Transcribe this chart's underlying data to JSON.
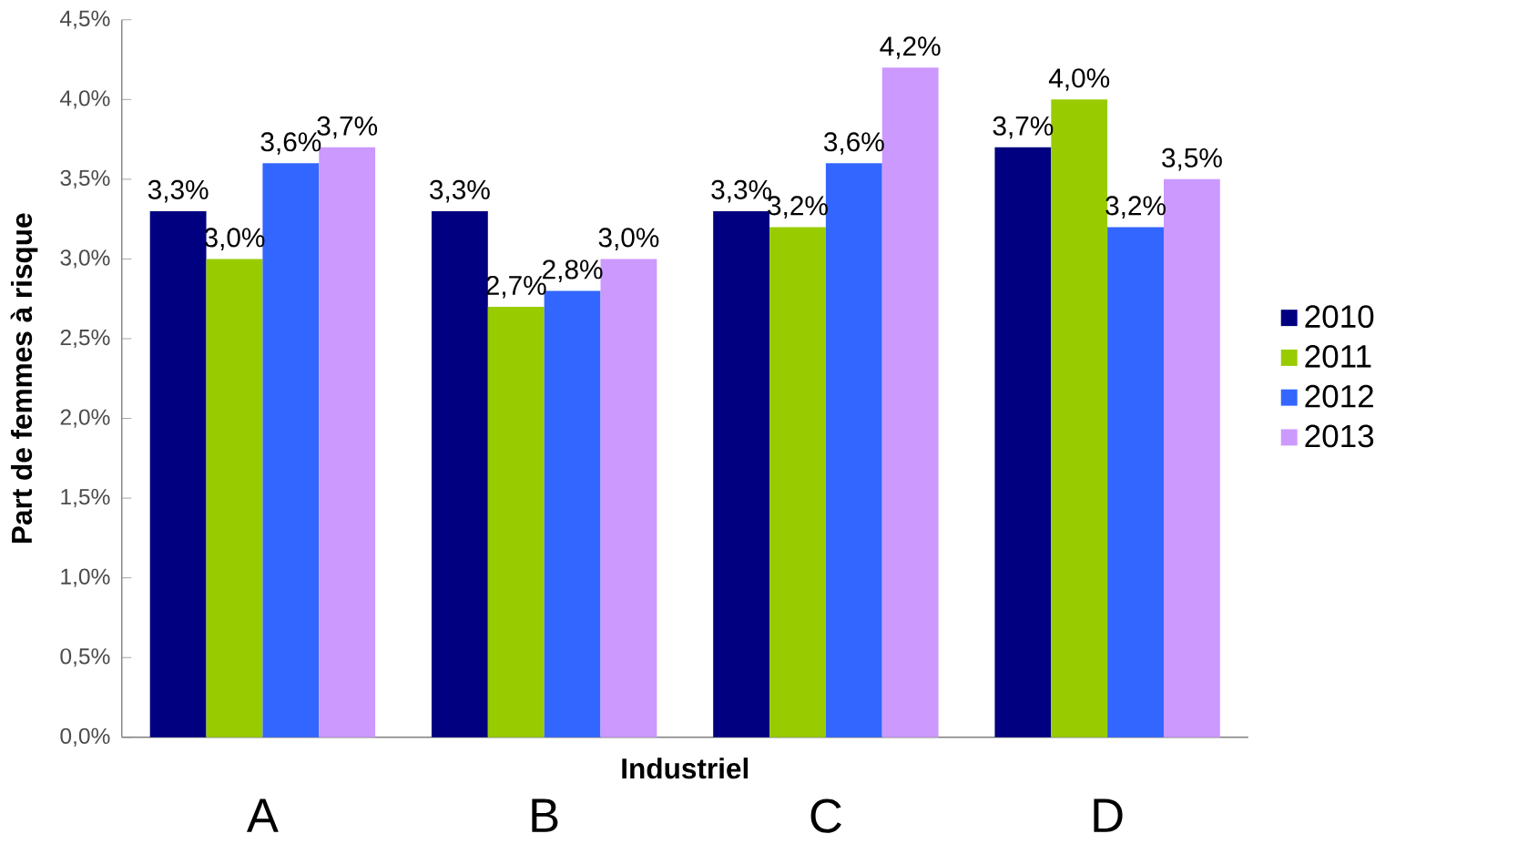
{
  "chart_data": {
    "type": "bar",
    "ylabel": "Part de femmes à risque",
    "xlabel": "Industriel",
    "categories": [
      "A",
      "B",
      "C",
      "D"
    ],
    "series": [
      {
        "name": "2010",
        "color": "#000080",
        "values": [
          3.3,
          3.3,
          3.3,
          3.7
        ],
        "value_labels": [
          "3,3%",
          "3,3%",
          "3,3%",
          "3,7%"
        ]
      },
      {
        "name": "2011",
        "color": "#99cc00",
        "values": [
          3.0,
          2.7,
          3.2,
          4.0
        ],
        "value_labels": [
          "3,0%",
          "2,7%",
          "3,2%",
          "4,0%"
        ]
      },
      {
        "name": "2012",
        "color": "#3366ff",
        "values": [
          3.6,
          2.8,
          3.6,
          3.2
        ],
        "value_labels": [
          "3,6%",
          "2,8%",
          "3,6%",
          "3,2%"
        ]
      },
      {
        "name": "2013",
        "color": "#cc99ff",
        "values": [
          3.7,
          3.0,
          4.2,
          3.5
        ],
        "value_labels": [
          "3,7%",
          "3,0%",
          "4,2%",
          "3,5%"
        ]
      }
    ],
    "ylim": [
      0,
      4.5
    ],
    "yticks": [
      {
        "value": 0,
        "label": "0,0%"
      },
      {
        "value": 0.5,
        "label": "0,5%"
      },
      {
        "value": 1,
        "label": "1,0%"
      },
      {
        "value": 1.5,
        "label": "1,5%"
      },
      {
        "value": 2,
        "label": "2,0%"
      },
      {
        "value": 2.5,
        "label": "2,5%"
      },
      {
        "value": 3,
        "label": "3,0%"
      },
      {
        "value": 3.5,
        "label": "3,5%"
      },
      {
        "value": 4,
        "label": "4,0%"
      },
      {
        "value": 4.5,
        "label": "4,5%"
      }
    ],
    "grid": false,
    "legend": "right"
  }
}
